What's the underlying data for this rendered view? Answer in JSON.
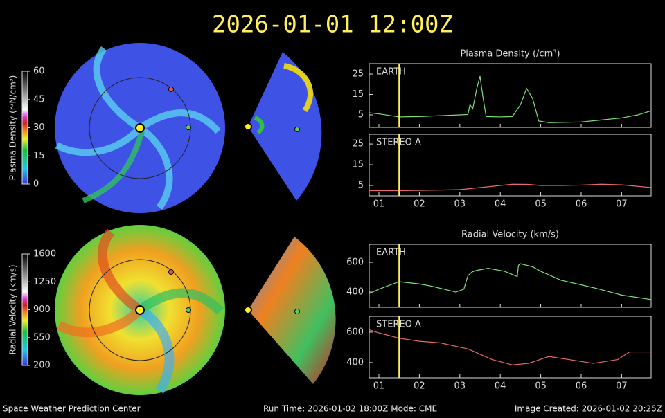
{
  "header": {
    "title": "2026-01-01 12:00Z"
  },
  "footer": {
    "left": "Space Weather Prediction Center",
    "center": "Run Time: 2026-01-02 18:00Z  Mode: CME",
    "right": "Image Created: 2026-01-02 20:25Z"
  },
  "chart_data": [
    {
      "type": "line",
      "title": "Plasma Density (/cm³)",
      "annotation": "EARTH",
      "xlim": [
        0.76,
        7.73
      ],
      "ylim": [
        -1.1,
        30.1
      ],
      "yticks": [
        5,
        15,
        25
      ],
      "marker_x": 1.5,
      "series": [
        {
          "name": "EARTH",
          "color": "#7fe07a",
          "x": [
            0.76,
            1.0,
            1.5,
            2.0,
            2.5,
            3.0,
            3.2,
            3.25,
            3.32,
            3.42,
            3.5,
            3.57,
            3.65,
            4.0,
            4.3,
            4.5,
            4.65,
            4.8,
            4.95,
            5.2,
            6.0,
            6.5,
            7.0,
            7.4,
            7.73
          ],
          "values": [
            6,
            5.5,
            4,
            4.2,
            4.6,
            5,
            5.2,
            10,
            8,
            18,
            24,
            14,
            4.2,
            4,
            4.2,
            10,
            18,
            13,
            2,
            1.2,
            1.5,
            2.5,
            3.5,
            5,
            7
          ]
        }
      ]
    },
    {
      "type": "line",
      "annotation": "STEREO A",
      "xlim": [
        0.76,
        7.73
      ],
      "ylim": [
        0,
        29.7
      ],
      "yticks": [
        5,
        15,
        25
      ],
      "xticks": [
        {
          "value": 1,
          "label": "01"
        },
        {
          "value": 2,
          "label": "02"
        },
        {
          "value": 3,
          "label": "03"
        },
        {
          "value": 4,
          "label": "04"
        },
        {
          "value": 5,
          "label": "05"
        },
        {
          "value": 6,
          "label": "06"
        },
        {
          "value": 7,
          "label": "07"
        }
      ],
      "marker_x": 1.5,
      "series": [
        {
          "name": "STEREO A",
          "color": "#e86a6a",
          "x": [
            0.76,
            1.5,
            2.5,
            3.0,
            3.5,
            4.0,
            4.3,
            4.7,
            5.0,
            5.5,
            6.0,
            6.5,
            7.0,
            7.4,
            7.73
          ],
          "values": [
            2.5,
            2.5,
            2.8,
            3,
            4,
            5,
            5.6,
            5.5,
            5,
            5,
            5.2,
            5.6,
            5.3,
            4.6,
            4
          ]
        }
      ]
    },
    {
      "type": "line",
      "title": "Radial Velocity (km/s)",
      "annotation": "EARTH",
      "xlim": [
        0.76,
        7.73
      ],
      "ylim": [
        298,
        721
      ],
      "yticks": [
        400,
        600
      ],
      "marker_x": 1.5,
      "series": [
        {
          "name": "EARTH",
          "color": "#7fe07a",
          "x": [
            0.76,
            1.0,
            1.5,
            2.0,
            2.3,
            2.9,
            3.1,
            3.2,
            3.3,
            3.4,
            3.7,
            4.1,
            4.42,
            4.45,
            4.5,
            4.8,
            5.0,
            5.5,
            6.3,
            7.0,
            7.73
          ],
          "values": [
            390,
            420,
            470,
            455,
            440,
            400,
            420,
            510,
            535,
            545,
            560,
            540,
            505,
            580,
            590,
            570,
            540,
            480,
            430,
            380,
            350
          ]
        }
      ]
    },
    {
      "type": "line",
      "annotation": "STEREO A",
      "xlim": [
        0.76,
        7.73
      ],
      "ylim": [
        300,
        704
      ],
      "yticks": [
        400,
        600
      ],
      "xticks": [
        {
          "value": 1,
          "label": "01"
        },
        {
          "value": 2,
          "label": "02"
        },
        {
          "value": 3,
          "label": "03"
        },
        {
          "value": 4,
          "label": "04"
        },
        {
          "value": 5,
          "label": "05"
        },
        {
          "value": 6,
          "label": "06"
        },
        {
          "value": 7,
          "label": "07"
        }
      ],
      "marker_x": 1.5,
      "series": [
        {
          "name": "STEREO A",
          "color": "#e86a6a",
          "x": [
            0.76,
            1.0,
            1.5,
            2.0,
            2.5,
            3.2,
            3.8,
            4.3,
            4.7,
            5.2,
            5.7,
            6.3,
            6.9,
            7.2,
            7.73
          ],
          "values": [
            615,
            595,
            560,
            540,
            530,
            490,
            420,
            385,
            395,
            440,
            420,
            395,
            420,
            470,
            470
          ]
        }
      ]
    },
    {
      "type": "colorbar",
      "label": "Plasma Density (r²N/cm³)",
      "ylim": [
        0,
        60
      ],
      "yticks": [
        0,
        15,
        30,
        45,
        60
      ]
    },
    {
      "type": "colorbar",
      "label": "Radial Velocity (km/s)",
      "ylim": [
        200,
        1600
      ],
      "yticks": [
        200,
        550,
        900,
        1250,
        1600
      ]
    }
  ]
}
